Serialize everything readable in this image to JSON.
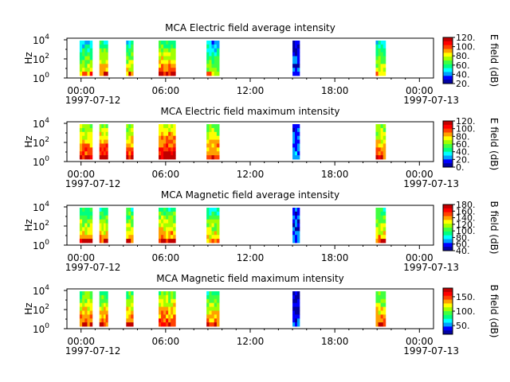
{
  "figure": {
    "x_axis": {
      "tick_labels": [
        "00:00",
        "06:00",
        "12:00",
        "18:00",
        "00:00"
      ],
      "date_start": "1997-07-12",
      "date_end": "1997-07-13",
      "x_range_hours": [
        -1,
        25
      ]
    }
  },
  "colormap": [
    "#0000a0",
    "#0000ff",
    "#00a0ff",
    "#00ffff",
    "#00ff80",
    "#40ff40",
    "#a0ff00",
    "#ffff00",
    "#ffa000",
    "#ff4000",
    "#ff0000",
    "#c00000"
  ],
  "chart_data": [
    {
      "type": "heatmap",
      "title": "MCA  Electric field average intensity",
      "ylabel": "Hz",
      "y_scale": "log",
      "y_tick_labels": [
        "10^0",
        "10^2",
        "10^4"
      ],
      "colorbar": {
        "label": "E field (dB)",
        "range": [
          20,
          120
        ],
        "ticks": [
          "20.",
          "40.",
          "60.",
          "80.",
          "100.",
          "120."
        ]
      },
      "time_blocks_hours": [
        [
          -0.1,
          0.8
        ],
        [
          1.3,
          1.9
        ],
        [
          3.2,
          3.7
        ],
        [
          5.5,
          6.7
        ],
        [
          8.9,
          9.8
        ],
        [
          15.0,
          15.5
        ],
        [
          20.9,
          21.6
        ]
      ],
      "dominant_levels_dB": [
        60,
        70,
        65,
        75,
        55,
        40,
        60
      ]
    },
    {
      "type": "heatmap",
      "title": "MCA  Electric field maximum intensity",
      "ylabel": "Hz",
      "y_scale": "log",
      "y_tick_labels": [
        "10^0",
        "10^2",
        "10^4"
      ],
      "colorbar": {
        "label": "E field (dB)",
        "range": [
          0,
          120
        ],
        "ticks": [
          "0.",
          "20.",
          "40.",
          "60.",
          "80.",
          "100.",
          "120."
        ]
      },
      "time_blocks_hours": [
        [
          -0.1,
          0.8
        ],
        [
          1.3,
          1.9
        ],
        [
          3.2,
          3.7
        ],
        [
          5.5,
          6.7
        ],
        [
          8.9,
          9.8
        ],
        [
          15.0,
          15.5
        ],
        [
          20.9,
          21.6
        ]
      ],
      "dominant_levels_dB": [
        75,
        80,
        75,
        85,
        70,
        30,
        70
      ]
    },
    {
      "type": "heatmap",
      "title": "MCA  Magnetic field average intensity",
      "ylabel": "Hz",
      "y_scale": "log",
      "y_tick_labels": [
        "10^0",
        "10^2",
        "10^4"
      ],
      "colorbar": {
        "label": "B field (dB)",
        "range": [
          40,
          180
        ],
        "ticks": [
          "40.",
          "60.",
          "80.",
          "100.",
          "120.",
          "140.",
          "160.",
          "180."
        ]
      },
      "time_blocks_hours": [
        [
          -0.1,
          0.8
        ],
        [
          1.3,
          1.9
        ],
        [
          3.2,
          3.7
        ],
        [
          5.5,
          6.7
        ],
        [
          8.9,
          9.8
        ],
        [
          15.0,
          15.5
        ],
        [
          20.9,
          21.6
        ]
      ],
      "dominant_levels_dB": [
        110,
        110,
        110,
        115,
        105,
        70,
        110
      ]
    },
    {
      "type": "heatmap",
      "title": "MCA  Magnetic field maximum intensity",
      "ylabel": "Hz",
      "y_scale": "log",
      "y_tick_labels": [
        "10^0",
        "10^2",
        "10^4"
      ],
      "colorbar": {
        "label": "B field (dB)",
        "range": [
          20,
          180
        ],
        "ticks": [
          "50.",
          "100.",
          "150."
        ]
      },
      "time_blocks_hours": [
        [
          -0.1,
          0.8
        ],
        [
          1.3,
          1.9
        ],
        [
          3.2,
          3.7
        ],
        [
          5.5,
          6.7
        ],
        [
          8.9,
          9.8
        ],
        [
          15.0,
          15.5
        ],
        [
          20.9,
          21.6
        ]
      ],
      "dominant_levels_dB": [
        110,
        110,
        110,
        115,
        105,
        50,
        110
      ]
    }
  ]
}
